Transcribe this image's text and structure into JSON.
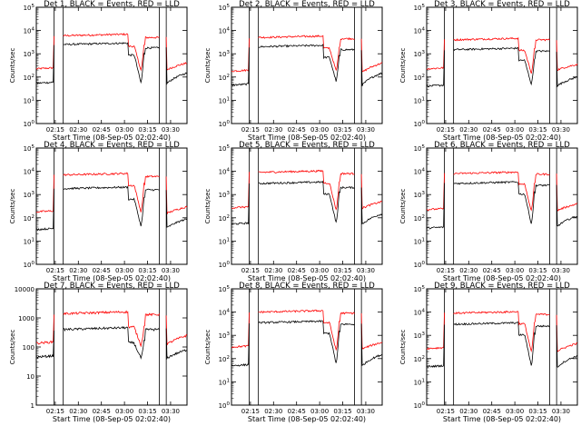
{
  "chart_data": {
    "type": "line",
    "layout": "3x3 grid of log-scale time series panels",
    "xlabel": "Start Time (08-Sep-05 02:02:40)",
    "ylabel": "Counts/sec",
    "x_tick_labels": [
      "02:15",
      "02:30",
      "02:45",
      "03:00",
      "03:15",
      "03:30"
    ],
    "x_ticks_min": [
      12.33,
      27.33,
      42.33,
      57.33,
      72.33,
      87.33
    ],
    "xlim_min": [
      0,
      98
    ],
    "data_gaps_min": [
      [
        11.5,
        17.5
      ],
      [
        80.0,
        84.5
      ]
    ],
    "series_colors": {
      "events": "#000000",
      "lld": "#ff0000"
    },
    "panels": [
      {
        "title": "Det 1, BLACK = Events, RED = LLD",
        "ylim": [
          1,
          100000
        ],
        "ytick_style": "exp",
        "series": [
          {
            "name": "Events",
            "color": "#000000",
            "base": 60,
            "high": 2500,
            "drop": 50,
            "after_end": 1800,
            "tail_start": 50,
            "tail_end": 150
          },
          {
            "name": "LLD",
            "color": "#ff0000",
            "base": 250,
            "high": 6000,
            "drop": 180,
            "after_end": 5000,
            "tail_start": 200,
            "tail_end": 400
          }
        ]
      },
      {
        "title": "Det 2, BLACK = Events, RED = LLD",
        "ylim": [
          1,
          100000
        ],
        "ytick_style": "exp",
        "series": [
          {
            "name": "Events",
            "color": "#000000",
            "base": 50,
            "high": 2000,
            "drop": 60,
            "after_end": 1500,
            "tail_start": 40,
            "tail_end": 150
          },
          {
            "name": "LLD",
            "color": "#ff0000",
            "base": 200,
            "high": 5000,
            "drop": 170,
            "after_end": 4500,
            "tail_start": 150,
            "tail_end": 400
          }
        ]
      },
      {
        "title": "Det 3, BLACK = Events, RED = LLD",
        "ylim": [
          1,
          100000
        ],
        "ytick_style": "exp",
        "series": [
          {
            "name": "Events",
            "color": "#000000",
            "base": 45,
            "high": 1500,
            "drop": 45,
            "after_end": 1300,
            "tail_start": 40,
            "tail_end": 100
          },
          {
            "name": "LLD",
            "color": "#ff0000",
            "base": 250,
            "high": 4000,
            "drop": 140,
            "after_end": 4000,
            "tail_start": 200,
            "tail_end": 350
          }
        ]
      },
      {
        "title": "Det 4, BLACK = Events, RED = LLD",
        "ylim": [
          1,
          100000
        ],
        "ytick_style": "exp",
        "series": [
          {
            "name": "Events",
            "color": "#000000",
            "base": 35,
            "high": 1800,
            "drop": 40,
            "after_end": 1600,
            "tail_start": 35,
            "tail_end": 90
          },
          {
            "name": "LLD",
            "color": "#ff0000",
            "base": 200,
            "high": 7000,
            "drop": 160,
            "after_end": 6000,
            "tail_start": 150,
            "tail_end": 300
          }
        ]
      },
      {
        "title": "Det 5, BLACK = Events, RED = LLD",
        "ylim": [
          1,
          100000
        ],
        "ytick_style": "exp",
        "series": [
          {
            "name": "Events",
            "color": "#000000",
            "base": 60,
            "high": 3000,
            "drop": 55,
            "after_end": 2000,
            "tail_start": 50,
            "tail_end": 150
          },
          {
            "name": "LLD",
            "color": "#ff0000",
            "base": 300,
            "high": 9000,
            "drop": 200,
            "after_end": 8000,
            "tail_start": 250,
            "tail_end": 500
          }
        ]
      },
      {
        "title": "Det 6, BLACK = Events, RED = LLD",
        "ylim": [
          1,
          100000
        ],
        "ytick_style": "exp",
        "series": [
          {
            "name": "Events",
            "color": "#000000",
            "base": 40,
            "high": 3000,
            "drop": 50,
            "after_end": 2500,
            "tail_start": 40,
            "tail_end": 120
          },
          {
            "name": "LLD",
            "color": "#ff0000",
            "base": 250,
            "high": 8000,
            "drop": 180,
            "after_end": 7500,
            "tail_start": 200,
            "tail_end": 400
          }
        ]
      },
      {
        "title": "Det 7, BLACK = Events, RED = LLD",
        "ylim": [
          1,
          10000
        ],
        "ytick_style": "plain",
        "series": [
          {
            "name": "Events",
            "color": "#000000",
            "base": 50,
            "high": 400,
            "drop": 40,
            "after_end": 400,
            "tail_start": 40,
            "tail_end": 80
          },
          {
            "name": "LLD",
            "color": "#ff0000",
            "base": 150,
            "high": 1400,
            "drop": 110,
            "after_end": 1300,
            "tail_start": 120,
            "tail_end": 250
          }
        ]
      },
      {
        "title": "Det 8, BLACK = Events, RED = LLD",
        "ylim": [
          1,
          100000
        ],
        "ytick_style": "exp",
        "series": [
          {
            "name": "Events",
            "color": "#000000",
            "base": 55,
            "high": 3500,
            "drop": 55,
            "after_end": 3000,
            "tail_start": 45,
            "tail_end": 150
          },
          {
            "name": "LLD",
            "color": "#ff0000",
            "base": 350,
            "high": 10000,
            "drop": 200,
            "after_end": 9000,
            "tail_start": 250,
            "tail_end": 500
          }
        ]
      },
      {
        "title": "Det 9, BLACK = Events, RED = LLD",
        "ylim": [
          1,
          100000
        ],
        "ytick_style": "exp",
        "series": [
          {
            "name": "Events",
            "color": "#000000",
            "base": 50,
            "high": 3000,
            "drop": 45,
            "after_end": 2500,
            "tail_start": 40,
            "tail_end": 130
          },
          {
            "name": "LLD",
            "color": "#ff0000",
            "base": 300,
            "high": 9000,
            "drop": 180,
            "after_end": 8000,
            "tail_start": 200,
            "tail_end": 450
          }
        ]
      }
    ]
  }
}
